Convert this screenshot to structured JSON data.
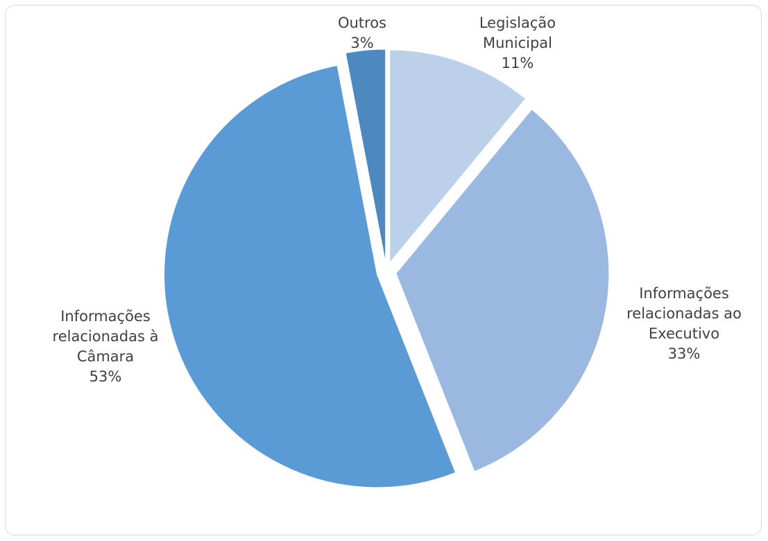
{
  "chart_data": {
    "type": "pie",
    "title": "",
    "slices": [
      {
        "label": "Legislação Municipal",
        "label_lines": [
          "Legislação",
          "Municipal"
        ],
        "value": 11,
        "value_text": "11%",
        "color": "#bdd0ea"
      },
      {
        "label": "Informações relacionadas ao Executivo",
        "label_lines": [
          "Informações",
          "relacionadas ao",
          "Executivo"
        ],
        "value": 33,
        "value_text": "33%",
        "color": "#9bb9e0"
      },
      {
        "label": "Informações relacionadas à Câmara",
        "label_lines": [
          "Informações",
          "relacionadas à",
          "Câmara"
        ],
        "value": 53,
        "value_text": "53%",
        "color": "#5b9bd5"
      },
      {
        "label": "Outros",
        "label_lines": [
          "Outros"
        ],
        "value": 3,
        "value_text": "3%",
        "color": "#4d89bf"
      }
    ],
    "start_angle_deg": 0,
    "direction": "clockwise",
    "exploded": true,
    "legend": "none"
  }
}
